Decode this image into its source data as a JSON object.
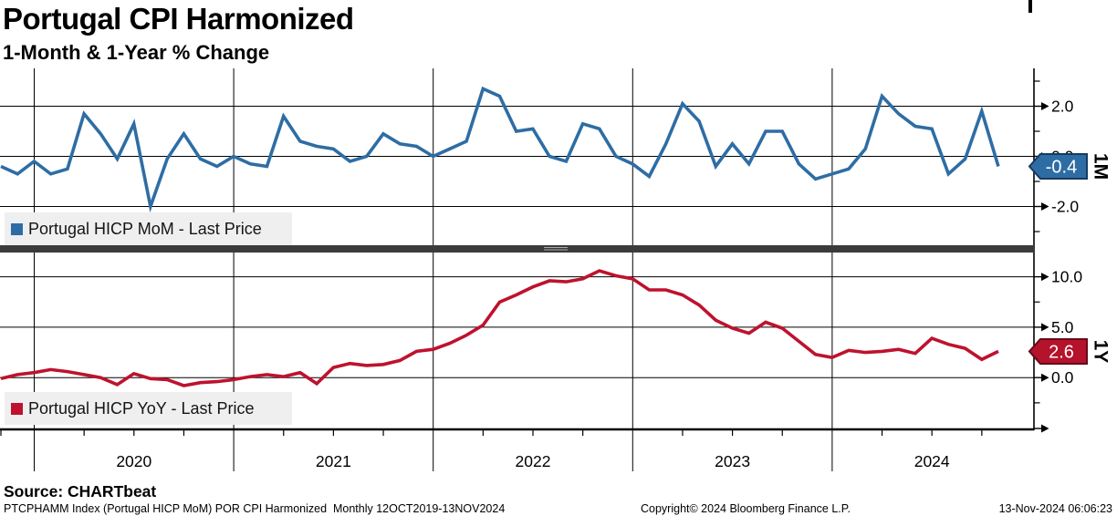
{
  "title": "Portugal CPI Harmonized",
  "subtitle": "1-Month & 1-Year % Change",
  "source_label": "Source: CHARTbeat",
  "footer": {
    "left": "PTCPHAMM Index (Portugal HICP MoM) POR CPI Harmonized  Monthly 12OCT2019-13NOV2024",
    "center": "Copyright© 2024 Bloomberg Finance L.P.",
    "right": "13-Nov-2024 06:06:23"
  },
  "colors": {
    "mom_line": "#2e6da4",
    "mom_badge_fill": "#2e6da4",
    "mom_badge_border": "#173a60",
    "yoy_line": "#be122e",
    "yoy_badge_fill": "#b5122b",
    "yoy_badge_border": "#650a1b",
    "grid": "#000000",
    "separator": "#3b3b3b",
    "legend_bg": "#efefef",
    "badge_text": "#ffffff"
  },
  "x_axis": {
    "year_labels": [
      "2020",
      "2021",
      "2022",
      "2023",
      "2024"
    ]
  },
  "chart_data": [
    {
      "type": "line",
      "name": "Portugal HICP MoM - Last Price",
      "panel": "top",
      "axis_side_label": "1M",
      "last_price": "-0.4",
      "x_start": "2019-10",
      "frequency": "monthly",
      "ylim": [
        -3.5,
        3.5
      ],
      "yticks": {
        "values": [
          2,
          0,
          -2
        ],
        "labels": [
          "2.0",
          "0.0",
          "-2.0"
        ]
      },
      "minor_ticks": [
        3,
        1,
        -1,
        -3
      ],
      "values": [
        -0.4,
        -0.7,
        -0.2,
        -0.7,
        -0.5,
        1.7,
        0.9,
        -0.1,
        1.3,
        -2.0,
        -0.1,
        0.9,
        -0.1,
        -0.4,
        0.0,
        -0.3,
        -0.4,
        1.6,
        0.6,
        0.4,
        0.3,
        -0.2,
        0.0,
        0.9,
        0.5,
        0.4,
        0.0,
        0.3,
        0.6,
        2.7,
        2.4,
        1.0,
        1.1,
        0.0,
        -0.2,
        1.3,
        1.1,
        0.0,
        -0.3,
        -0.8,
        0.5,
        2.1,
        1.4,
        -0.4,
        0.5,
        -0.3,
        1.0,
        1.0,
        -0.3,
        -0.9,
        -0.7,
        -0.5,
        0.3,
        2.4,
        1.7,
        1.2,
        1.1,
        -0.7,
        -0.1,
        1.8,
        -0.4
      ]
    },
    {
      "type": "line",
      "name": "Portugal HICP YoY - Last Price",
      "panel": "bottom",
      "axis_side_label": "1Y",
      "last_price": "2.6",
      "x_start": "2019-10",
      "frequency": "monthly",
      "ylim": [
        -5,
        12.5
      ],
      "yticks": {
        "values": [
          10,
          5,
          0
        ],
        "labels": [
          "10.0",
          "5.0",
          "0.0"
        ]
      },
      "minor_ticks": [
        7.5,
        2.5,
        -2.5
      ],
      "values": [
        -0.1,
        0.3,
        0.5,
        0.8,
        0.6,
        0.3,
        0.0,
        -0.7,
        0.4,
        -0.1,
        -0.2,
        -0.8,
        -0.5,
        -0.4,
        -0.2,
        0.1,
        0.3,
        0.1,
        0.5,
        -0.6,
        1.0,
        1.4,
        1.2,
        1.3,
        1.7,
        2.6,
        2.8,
        3.4,
        4.2,
        5.2,
        7.5,
        8.2,
        9.0,
        9.6,
        9.5,
        9.8,
        10.6,
        10.1,
        9.8,
        8.7,
        8.7,
        8.2,
        7.2,
        5.7,
        4.9,
        4.4,
        5.5,
        4.9,
        3.6,
        2.3,
        2.0,
        2.7,
        2.5,
        2.6,
        2.8,
        2.4,
        3.9,
        3.3,
        2.9,
        1.8,
        2.6
      ]
    }
  ]
}
